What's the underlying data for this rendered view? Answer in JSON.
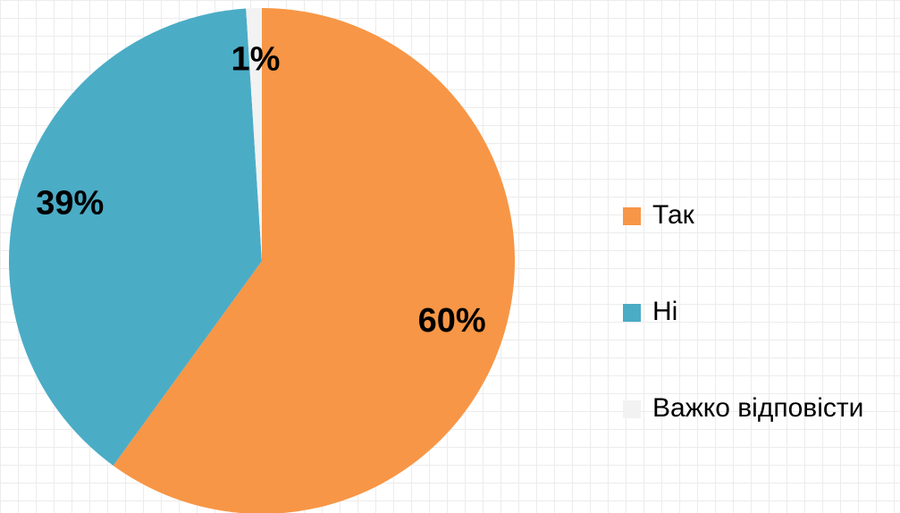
{
  "chart_data": {
    "type": "pie",
    "categories": [
      "Так",
      "Ні",
      "Важко відповісти"
    ],
    "values": [
      60,
      39,
      1
    ],
    "value_labels": [
      "60%",
      "39%",
      "1%"
    ],
    "colors": [
      "#f79646",
      "#4bacc6",
      "#f2f2f2"
    ],
    "legend": "right"
  }
}
